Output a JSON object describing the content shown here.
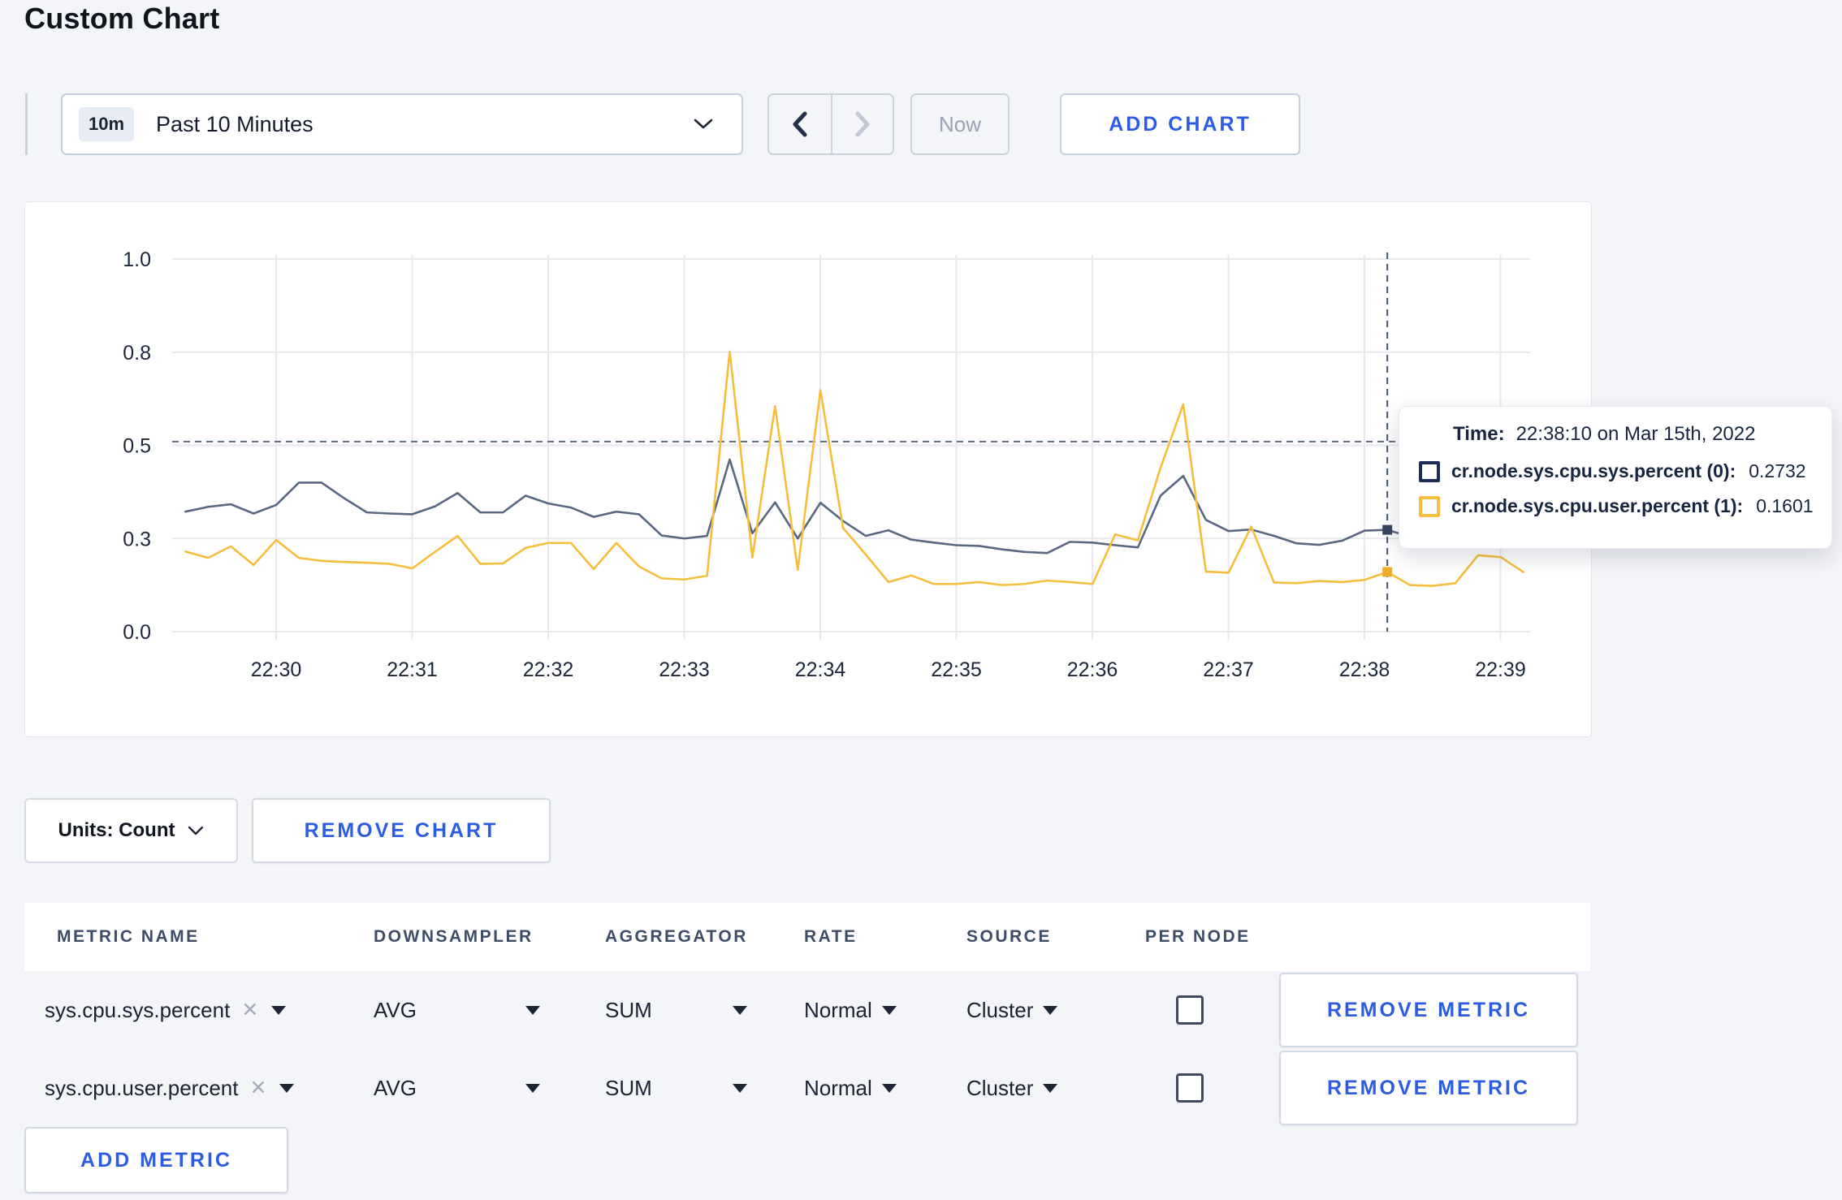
{
  "page": {
    "title": "Custom Chart"
  },
  "toolbar": {
    "range_badge": "10m",
    "range_label": "Past 10 Minutes",
    "now_label": "Now",
    "add_chart_label": "ADD CHART"
  },
  "chart_data": {
    "type": "line",
    "x": [
      "22:29:20",
      "22:29:30",
      "22:29:40",
      "22:29:50",
      "22:30:00",
      "22:30:10",
      "22:30:20",
      "22:30:30",
      "22:30:40",
      "22:30:50",
      "22:31:00",
      "22:31:10",
      "22:31:20",
      "22:31:30",
      "22:31:40",
      "22:31:50",
      "22:32:00",
      "22:32:10",
      "22:32:20",
      "22:32:30",
      "22:32:40",
      "22:32:50",
      "22:33:00",
      "22:33:10",
      "22:33:20",
      "22:33:30",
      "22:33:40",
      "22:33:50",
      "22:34:00",
      "22:34:10",
      "22:34:20",
      "22:34:30",
      "22:34:40",
      "22:34:50",
      "22:35:00",
      "22:35:10",
      "22:35:20",
      "22:35:30",
      "22:35:40",
      "22:35:50",
      "22:36:00",
      "22:36:10",
      "22:36:20",
      "22:36:30",
      "22:36:40",
      "22:36:50",
      "22:37:00",
      "22:37:10",
      "22:37:20",
      "22:37:30",
      "22:37:40",
      "22:37:50",
      "22:38:00",
      "22:38:10",
      "22:38:20",
      "22:38:30",
      "22:38:40",
      "22:38:50",
      "22:39:00",
      "22:39:10"
    ],
    "x_tick_labels": [
      "22:30",
      "22:31",
      "22:32",
      "22:33",
      "22:34",
      "22:35",
      "22:36",
      "22:37",
      "22:38",
      "22:39"
    ],
    "y_tick_values": [
      0,
      0.25,
      0.5,
      0.75,
      1.0
    ],
    "y_tick_labels": [
      "0.0",
      "0.3",
      "0.5",
      "0.8",
      "1.0"
    ],
    "ylim": [
      0,
      1
    ],
    "grid": true,
    "series": [
      {
        "name": "cr.node.sys.cpu.sys.percent",
        "color": "#5a6781",
        "dot_color": "#39465f",
        "values": [
          0.322,
          0.335,
          0.342,
          0.317,
          0.34,
          0.4,
          0.4,
          0.358,
          0.32,
          0.317,
          0.315,
          0.336,
          0.372,
          0.32,
          0.32,
          0.365,
          0.344,
          0.333,
          0.308,
          0.322,
          0.315,
          0.258,
          0.25,
          0.257,
          0.462,
          0.264,
          0.347,
          0.25,
          0.346,
          0.297,
          0.257,
          0.272,
          0.247,
          0.239,
          0.232,
          0.23,
          0.221,
          0.214,
          0.211,
          0.241,
          0.239,
          0.232,
          0.226,
          0.365,
          0.418,
          0.3,
          0.27,
          0.274,
          0.257,
          0.237,
          0.233,
          0.244,
          0.271,
          0.2732,
          0.255,
          0.273,
          0.245,
          0.26,
          0.26,
          0.258
        ]
      },
      {
        "name": "cr.node.sys.cpu.user.percent",
        "color": "#f6be3d",
        "dot_color": "#f0ac2e",
        "values": [
          0.215,
          0.198,
          0.229,
          0.179,
          0.246,
          0.198,
          0.19,
          0.187,
          0.185,
          0.182,
          0.17,
          0.214,
          0.257,
          0.182,
          0.183,
          0.225,
          0.238,
          0.238,
          0.168,
          0.238,
          0.175,
          0.143,
          0.14,
          0.15,
          0.752,
          0.199,
          0.605,
          0.166,
          0.648,
          0.278,
          0.207,
          0.133,
          0.151,
          0.128,
          0.128,
          0.133,
          0.125,
          0.128,
          0.137,
          0.133,
          0.128,
          0.261,
          0.245,
          0.44,
          0.61,
          0.161,
          0.158,
          0.282,
          0.132,
          0.13,
          0.136,
          0.133,
          0.139,
          0.1601,
          0.125,
          0.123,
          0.13,
          0.205,
          0.2,
          0.16
        ]
      }
    ],
    "crosshair": {
      "time": "22:38:10",
      "guide_value": 0.51,
      "sys_value": 0.2732,
      "user_value": 0.1601
    }
  },
  "tooltip": {
    "time_label": "Time:",
    "time_value": "22:38:10 on Mar 15th, 2022",
    "rows": [
      {
        "name": "cr.node.sys.cpu.sys.percent (0):",
        "value": "0.2732"
      },
      {
        "name": "cr.node.sys.cpu.user.percent (1):",
        "value": "0.1601"
      }
    ]
  },
  "chart_controls": {
    "units_label": "Units: Count",
    "remove_chart_label": "REMOVE CHART"
  },
  "icons": {
    "clear_metric": "✕"
  },
  "metrics_table": {
    "headers": [
      "METRIC NAME",
      "DOWNSAMPLER",
      "AGGREGATOR",
      "RATE",
      "SOURCE",
      "PER NODE"
    ],
    "rows": [
      {
        "metric": "sys.cpu.sys.percent",
        "downsampler": "AVG",
        "aggregator": "SUM",
        "rate": "Normal",
        "source": "Cluster",
        "per_node_checked": false,
        "remove_label": "REMOVE METRIC"
      },
      {
        "metric": "sys.cpu.user.percent",
        "downsampler": "AVG",
        "aggregator": "SUM",
        "rate": "Normal",
        "source": "Cluster",
        "per_node_checked": false,
        "remove_label": "REMOVE METRIC"
      }
    ],
    "add_metric_label": "ADD METRIC"
  }
}
